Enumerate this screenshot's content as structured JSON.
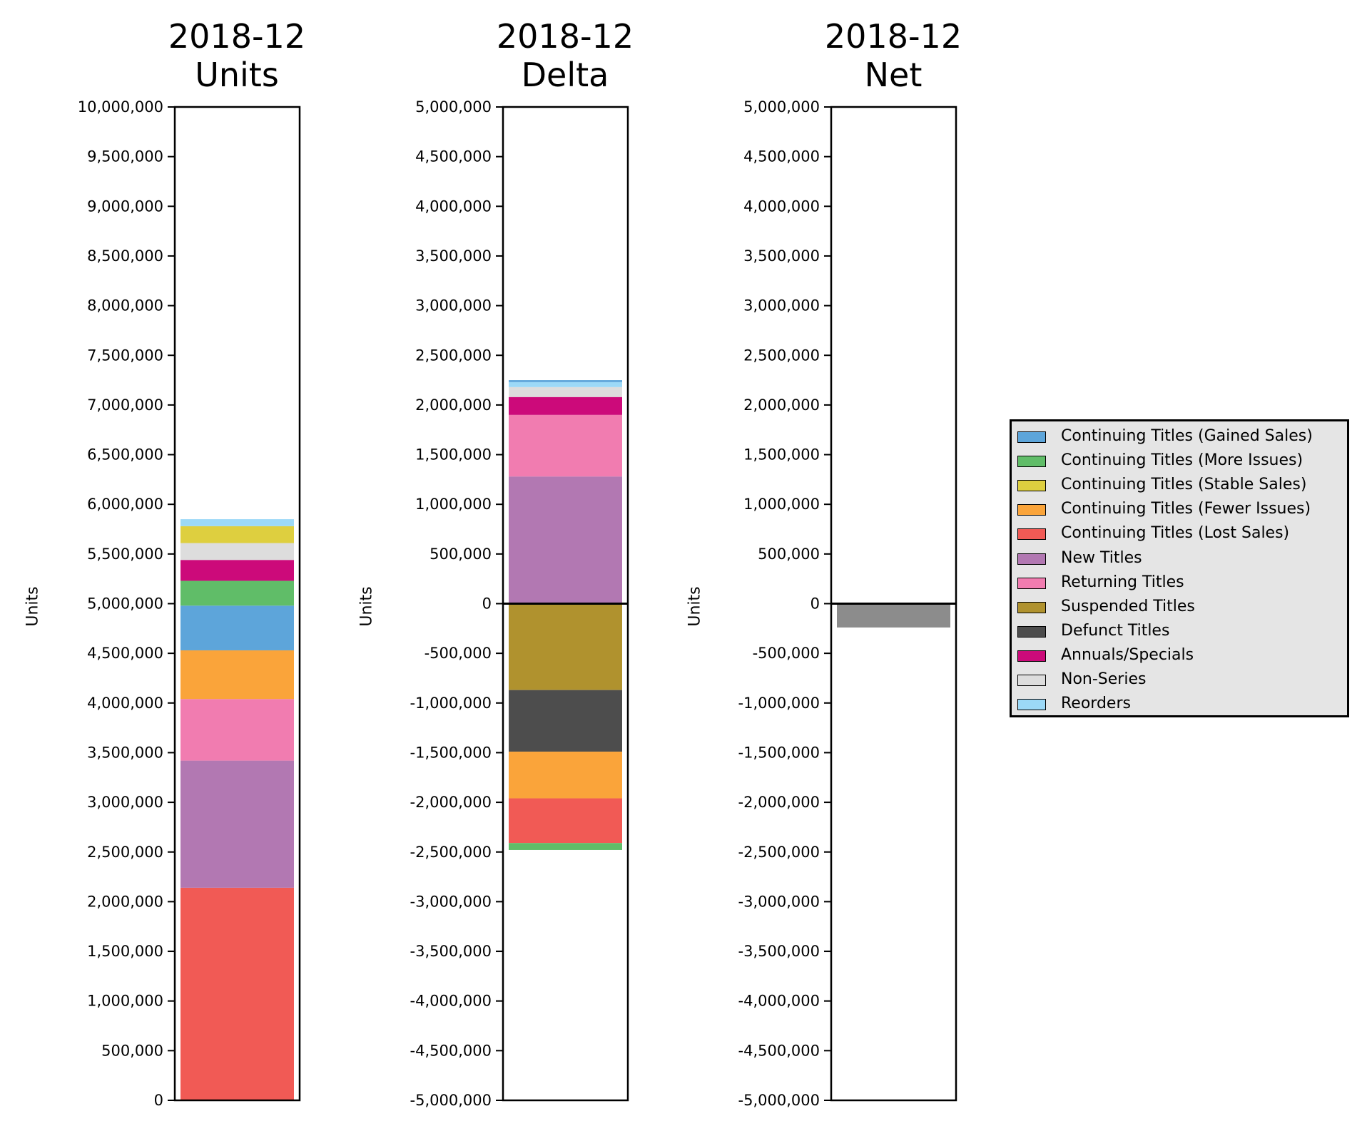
{
  "chart_data": [
    {
      "type": "bar",
      "stacked": true,
      "title": "2018-12\nUnits",
      "title_lines": [
        "2018-12",
        "Units"
      ],
      "ylabel": "Units",
      "ylim": [
        0,
        10000000
      ],
      "yticks": [
        "0",
        "500,000",
        "1,000,000",
        "1,500,000",
        "2,000,000",
        "2,500,000",
        "3,000,000",
        "3,500,000",
        "4,000,000",
        "4,500,000",
        "5,000,000",
        "5,500,000",
        "6,000,000",
        "6,500,000",
        "7,000,000",
        "7,500,000",
        "8,000,000",
        "8,500,000",
        "9,000,000",
        "9,500,000",
        "10,000,000"
      ],
      "segments": [
        {
          "name": "Continuing Titles (Lost Sales)",
          "value": 2140000,
          "color": "#f15a55"
        },
        {
          "name": "New Titles",
          "value": 1280000,
          "color": "#b278b2"
        },
        {
          "name": "Returning Titles",
          "value": 620000,
          "color": "#f17cb0"
        },
        {
          "name": "Continuing Titles (Fewer Issues)",
          "value": 490000,
          "color": "#faa43a"
        },
        {
          "name": "Continuing Titles (Gained Sales)",
          "value": 450000,
          "color": "#5da5da"
        },
        {
          "name": "Continuing Titles (More Issues)",
          "value": 250000,
          "color": "#60bd68"
        },
        {
          "name": "Annuals/Specials",
          "value": 210000,
          "color": "#cc0a7a"
        },
        {
          "name": "Non-Series",
          "value": 170000,
          "color": "#dddddd"
        },
        {
          "name": "Continuing Titles (Stable Sales)",
          "value": 170000,
          "color": "#decf3f"
        },
        {
          "name": "Reorders",
          "value": 70000,
          "color": "#9cd9f7"
        }
      ]
    },
    {
      "type": "bar",
      "stacked": true,
      "title": "2018-12\nDelta",
      "title_lines": [
        "2018-12",
        "Delta"
      ],
      "ylabel": "Units",
      "ylim": [
        -5000000,
        5000000
      ],
      "zero_line": true,
      "yticks": [
        "-5,000,000",
        "-4,500,000",
        "-4,000,000",
        "-3,500,000",
        "-3,000,000",
        "-2,500,000",
        "-2,000,000",
        "-1,500,000",
        "-1,000,000",
        "-500,000",
        "0",
        "500,000",
        "1,000,000",
        "1,500,000",
        "2,000,000",
        "2,500,000",
        "3,000,000",
        "3,500,000",
        "4,000,000",
        "4,500,000",
        "5,000,000"
      ],
      "positive_segments": [
        {
          "name": "New Titles",
          "value": 1280000,
          "color": "#b278b2"
        },
        {
          "name": "Returning Titles",
          "value": 620000,
          "color": "#f17cb0"
        },
        {
          "name": "Annuals/Specials",
          "value": 180000,
          "color": "#cc0a7a"
        },
        {
          "name": "Non-Series",
          "value": 100000,
          "color": "#dddddd"
        },
        {
          "name": "Reorders",
          "value": 50000,
          "color": "#9cd9f7"
        },
        {
          "name": "Continuing Titles (Gained Sales)",
          "value": 20000,
          "color": "#5da5da"
        }
      ],
      "negative_segments": [
        {
          "name": "Suspended Titles",
          "value": -870000,
          "color": "#b0922e"
        },
        {
          "name": "Defunct Titles",
          "value": -620000,
          "color": "#4d4d4d"
        },
        {
          "name": "Continuing Titles (Fewer Issues)",
          "value": -470000,
          "color": "#faa43a"
        },
        {
          "name": "Continuing Titles (Lost Sales)",
          "value": -450000,
          "color": "#f15a55"
        },
        {
          "name": "Continuing Titles (More Issues)",
          "value": -70000,
          "color": "#60bd68"
        }
      ]
    },
    {
      "type": "bar",
      "title": "2018-12\nNet",
      "title_lines": [
        "2018-12",
        "Net"
      ],
      "ylabel": "Units",
      "ylim": [
        -5000000,
        5000000
      ],
      "zero_line": true,
      "yticks": [
        "-5,000,000",
        "-4,500,000",
        "-4,000,000",
        "-3,500,000",
        "-3,000,000",
        "-2,500,000",
        "-2,000,000",
        "-1,500,000",
        "-1,000,000",
        "-500,000",
        "0",
        "500,000",
        "1,000,000",
        "1,500,000",
        "2,000,000",
        "2,500,000",
        "3,000,000",
        "3,500,000",
        "4,000,000",
        "4,500,000",
        "5,000,000"
      ],
      "segments": [
        {
          "name": "Net",
          "value": -240000,
          "color": "#8c8c8c"
        }
      ]
    }
  ],
  "legend": {
    "placement": "right",
    "items": [
      {
        "label": "Continuing Titles (Gained Sales)",
        "color": "#5da5da"
      },
      {
        "label": "Continuing Titles (More Issues)",
        "color": "#60bd68"
      },
      {
        "label": "Continuing Titles (Stable Sales)",
        "color": "#decf3f"
      },
      {
        "label": "Continuing Titles (Fewer Issues)",
        "color": "#faa43a"
      },
      {
        "label": "Continuing Titles (Lost Sales)",
        "color": "#f15a55"
      },
      {
        "label": "New Titles",
        "color": "#b278b2"
      },
      {
        "label": "Returning Titles",
        "color": "#f17cb0"
      },
      {
        "label": "Suspended Titles",
        "color": "#b0922e"
      },
      {
        "label": "Defunct Titles",
        "color": "#4d4d4d"
      },
      {
        "label": "Annuals/Specials",
        "color": "#cc0a7a"
      },
      {
        "label": "Non-Series",
        "color": "#dddddd"
      },
      {
        "label": "Reorders",
        "color": "#9cd9f7"
      }
    ]
  }
}
